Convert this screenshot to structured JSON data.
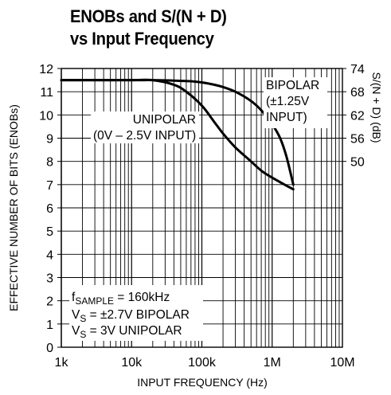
{
  "title_lines": [
    "ENOBs and S/(N + D)",
    "vs Input Frequency"
  ],
  "chart_data": {
    "type": "line",
    "title": "ENOBs and S/(N + D) vs Input Frequency",
    "xlabel": "INPUT FREQUENCY (Hz)",
    "ylabel": "EFFECTIVE NUMBER OF BITS (ENOBs)",
    "y2label": "S/(N + D) (dB)",
    "x_scale": "log",
    "xlim": [
      1000,
      10000000
    ],
    "ylim": [
      0,
      12
    ],
    "grid": true,
    "x_ticks": [
      1000,
      10000,
      100000,
      1000000,
      10000000
    ],
    "x_tick_labels": [
      "1k",
      "10k",
      "100k",
      "1M",
      "10M"
    ],
    "y_ticks": [
      0,
      1,
      2,
      3,
      4,
      5,
      6,
      7,
      8,
      9,
      10,
      11,
      12
    ],
    "y_tick_labels": [
      "0",
      "1",
      "2",
      "3",
      "4",
      "5",
      "6",
      "7",
      "8",
      "9",
      "10",
      "11",
      "12"
    ],
    "y2_ticks": [
      {
        "label": "74",
        "at_enob": 12
      },
      {
        "label": "68",
        "at_enob": 11
      },
      {
        "label": "62",
        "at_enob": 10
      },
      {
        "label": "56",
        "at_enob": 9
      },
      {
        "label": "50",
        "at_enob": 8
      }
    ],
    "series": [
      {
        "name": "BIPOLAR (±1.25V INPUT)",
        "x": [
          1000,
          10000,
          20000,
          40000,
          70000,
          100000,
          150000,
          200000,
          300000,
          500000,
          700000,
          1000000,
          1300000,
          1600000,
          2000000
        ],
        "y": [
          11.5,
          11.5,
          11.5,
          11.48,
          11.45,
          11.4,
          11.3,
          11.2,
          11.0,
          10.6,
          10.2,
          9.6,
          9.0,
          8.2,
          7.0
        ]
      },
      {
        "name": "UNIPOLAR (0V – 2.5V INPUT)",
        "x": [
          1000,
          10000,
          20000,
          40000,
          60000,
          100000,
          150000,
          200000,
          300000,
          500000,
          700000,
          1000000,
          1500000,
          2000000
        ],
        "y": [
          11.5,
          11.5,
          11.5,
          11.3,
          11.0,
          10.4,
          9.7,
          9.2,
          8.6,
          8.0,
          7.6,
          7.3,
          7.0,
          6.8
        ]
      }
    ],
    "annotations": {
      "bipolar": [
        "BIPOLAR",
        "(±1.25V",
        "INPUT)"
      ],
      "unipolar": [
        "UNIPOLAR",
        "(0V – 2.5V INPUT)"
      ],
      "conditions": {
        "fsample": {
          "main": "f",
          "sub": "SAMPLE",
          "rest": " = 160kHz"
        },
        "vs_bipolar": {
          "main": "V",
          "sub": "S",
          "rest": " = ±2.7V BIPOLAR"
        },
        "vs_unipolar": {
          "main": "V",
          "sub": "S",
          "rest": " = 3V UNIPOLAR"
        }
      }
    }
  }
}
